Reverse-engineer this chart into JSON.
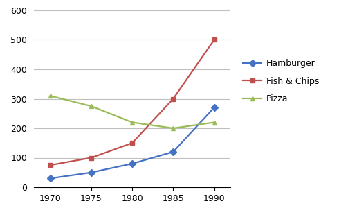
{
  "years": [
    1970,
    1975,
    1980,
    1985,
    1990
  ],
  "hamburger": [
    30,
    50,
    80,
    120,
    270
  ],
  "fish_and_chips": [
    75,
    100,
    150,
    300,
    500
  ],
  "pizza": [
    310,
    275,
    220,
    200,
    220
  ],
  "hamburger_color": "#4472C4",
  "fish_chips_color": "#C0504D",
  "pizza_color": "#9BBB59",
  "hamburger_label": "Hamburger",
  "fish_chips_label": "Fish & Chips",
  "pizza_label": "Pizza",
  "hamburger_marker": "D",
  "fish_chips_marker": "s",
  "pizza_marker": "^",
  "ylim": [
    0,
    600
  ],
  "yticks": [
    0,
    100,
    200,
    300,
    400,
    500,
    600
  ],
  "background_color": "#ffffff",
  "grid_color": "#bfbfbf",
  "marker_size": 5,
  "line_width": 1.6,
  "tick_fontsize": 9,
  "legend_fontsize": 9
}
